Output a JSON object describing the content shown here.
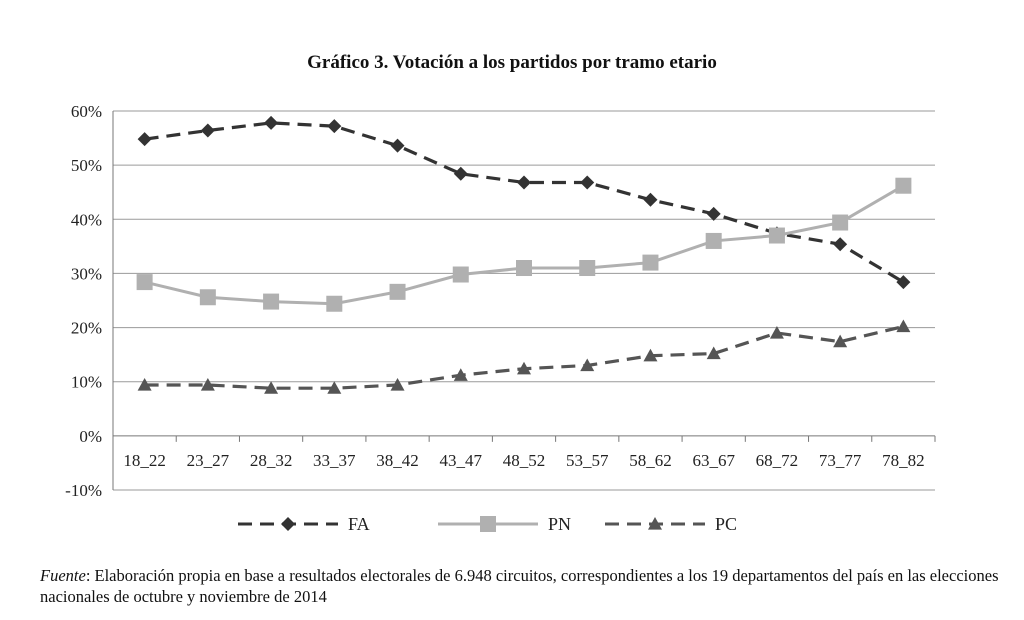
{
  "chart_data": {
    "type": "line",
    "title": "Gráfico 3. Votación a los partidos por tramo etario",
    "categories": [
      "18_22",
      "23_27",
      "28_32",
      "33_37",
      "38_42",
      "43_47",
      "48_52",
      "53_57",
      "58_62",
      "63_67",
      "68_72",
      "73_77",
      "78_82"
    ],
    "series": [
      {
        "name": "FA",
        "values": [
          54.8,
          56.4,
          57.8,
          57.2,
          53.6,
          48.4,
          46.8,
          46.8,
          43.6,
          41.0,
          37.4,
          35.4,
          28.4
        ],
        "color": "#333333",
        "dash": "dashed",
        "marker": "diamond"
      },
      {
        "name": "PN",
        "values": [
          28.4,
          25.6,
          24.8,
          24.4,
          26.6,
          29.8,
          31.0,
          31.0,
          32.0,
          36.0,
          37.0,
          39.4,
          46.2
        ],
        "color": "#b0b0b0",
        "dash": "solid",
        "marker": "square"
      },
      {
        "name": "PC",
        "values": [
          9.4,
          9.4,
          8.8,
          8.8,
          9.4,
          11.2,
          12.4,
          13.0,
          14.8,
          15.2,
          19.0,
          17.4,
          20.2
        ],
        "color": "#555555",
        "dash": "dashed",
        "marker": "triangle"
      }
    ],
    "yticks": [
      "-10%",
      "0%",
      "10%",
      "20%",
      "30%",
      "40%",
      "50%",
      "60%"
    ],
    "ylim": [
      -10,
      60
    ],
    "grid": true,
    "legend_position": "bottom"
  },
  "source": {
    "label": "Fuente",
    "text": ": Elaboración propia en base a resultados electorales de 6.948 circuitos, correspondientes a los 19 departamentos del país en las elecciones nacionales de octubre y noviembre de 2014"
  }
}
